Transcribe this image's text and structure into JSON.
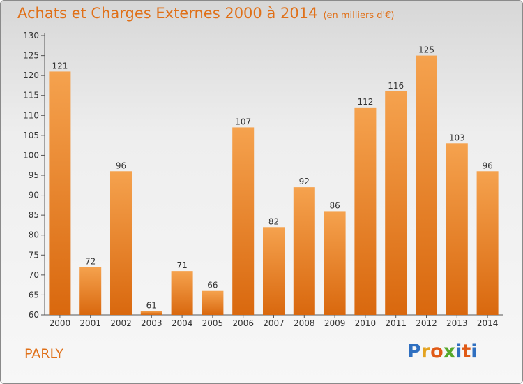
{
  "header": {
    "title": "Achats et Charges Externes 2000 à 2014",
    "unit": "(en milliers d'€)"
  },
  "footer": {
    "town": "PARLY",
    "logo": [
      "P",
      "r",
      "o",
      "x",
      "i",
      "t",
      "i"
    ],
    "logo_colors": [
      "#2f6fc0",
      "#e4a320",
      "#e05a16",
      "#56a82c",
      "#2f6fc0",
      "#e05a16",
      "#2f6fc0"
    ]
  },
  "colors": {
    "bar_top": "#f5a24e",
    "bar_bottom": "#d9680e",
    "label": "#333333",
    "accent": "#e07018"
  },
  "chart_data": {
    "type": "bar",
    "title": "Achats et Charges Externes 2000 à 2014",
    "subtitle": "(en milliers d'€)",
    "xlabel": "",
    "ylabel": "",
    "categories": [
      "2000",
      "2001",
      "2002",
      "2003",
      "2004",
      "2005",
      "2006",
      "2007",
      "2008",
      "2009",
      "2010",
      "2011",
      "2012",
      "2013",
      "2014"
    ],
    "values": [
      121,
      72,
      96,
      61,
      71,
      66,
      107,
      82,
      92,
      86,
      112,
      116,
      125,
      103,
      96
    ],
    "ylim": [
      60,
      130
    ],
    "yticks": [
      60,
      65,
      70,
      75,
      80,
      85,
      90,
      95,
      100,
      105,
      110,
      115,
      120,
      125,
      130
    ],
    "grid": false,
    "legend": "none"
  }
}
